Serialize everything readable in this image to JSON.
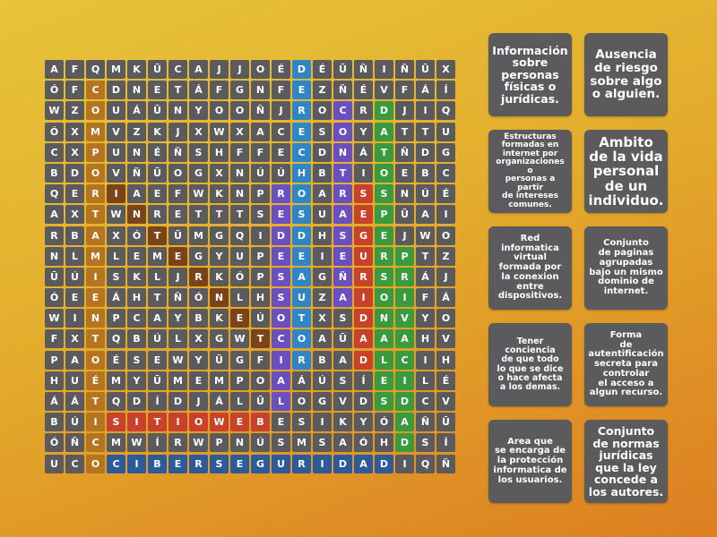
{
  "colors": {
    "cell": "#5b5a5c",
    "comportamiento_etico": "#b5741f",
    "internet": "#7a4319",
    "derechos_de_autor": "#2f86c6",
    "redes_sociales": "#6a4fc0",
    "contrasena": "#6a4fc0",
    "seguridad": "#c8412a",
    "sitio_web": "#c8412a",
    "datos_personales": "#3a9a3e",
    "privacidad": "#3a9a3e",
    "ciberseguridad": "#2d5a99"
  },
  "grid": [
    [
      "A",
      "F",
      "Q",
      "M",
      "K",
      "Ū",
      "C",
      "A",
      "J",
      "J",
      "O",
      "É",
      "D",
      "É",
      "Ū",
      "Ñ",
      "I",
      "Ñ",
      "Ū",
      "X"
    ],
    [
      "Ó",
      "F",
      "C",
      "D",
      "N",
      "E",
      "T",
      "Á",
      "F",
      "G",
      "N",
      "F",
      "E",
      "Z",
      "Ñ",
      "É",
      "V",
      "F",
      "Á",
      "Í"
    ],
    [
      "W",
      "Z",
      "O",
      "U",
      "Á",
      "Ū",
      "N",
      "Y",
      "O",
      "O",
      "Ñ",
      "J",
      "R",
      "O",
      "C",
      "R",
      "D",
      "J",
      "I",
      "Q"
    ],
    [
      "Ó",
      "X",
      "M",
      "V",
      "Z",
      "K",
      "J",
      "X",
      "W",
      "X",
      "A",
      "C",
      "E",
      "S",
      "O",
      "Y",
      "A",
      "T",
      "T",
      "U"
    ],
    [
      "C",
      "X",
      "P",
      "U",
      "N",
      "É",
      "Ñ",
      "S",
      "H",
      "F",
      "F",
      "E",
      "C",
      "D",
      "N",
      "Á",
      "T",
      "Ñ",
      "D",
      "G"
    ],
    [
      "B",
      "D",
      "O",
      "V",
      "Ñ",
      "Ū",
      "O",
      "G",
      "X",
      "N",
      "Ú",
      "Ú",
      "H",
      "B",
      "T",
      "I",
      "O",
      "E",
      "B",
      "C"
    ],
    [
      "Q",
      "E",
      "R",
      "I",
      "A",
      "E",
      "F",
      "W",
      "K",
      "N",
      "P",
      "R",
      "O",
      "A",
      "R",
      "S",
      "S",
      "N",
      "Ú",
      "É"
    ],
    [
      "A",
      "X",
      "T",
      "W",
      "N",
      "R",
      "E",
      "T",
      "T",
      "T",
      "S",
      "E",
      "S",
      "U",
      "A",
      "E",
      "P",
      "Ū",
      "A",
      "I"
    ],
    [
      "R",
      "B",
      "A",
      "X",
      "Ó",
      "T",
      "Ū",
      "M",
      "G",
      "Q",
      "I",
      "D",
      "D",
      "H",
      "S",
      "G",
      "E",
      "J",
      "W",
      "O"
    ],
    [
      "N",
      "L",
      "M",
      "L",
      "E",
      "M",
      "E",
      "G",
      "Y",
      "U",
      "P",
      "E",
      "E",
      "I",
      "E",
      "U",
      "R",
      "P",
      "T",
      "Z"
    ],
    [
      "Ū",
      "Ú",
      "I",
      "S",
      "K",
      "L",
      "J",
      "R",
      "K",
      "Ó",
      "P",
      "S",
      "A",
      "G",
      "Ñ",
      "R",
      "S",
      "R",
      "Á",
      "J"
    ],
    [
      "Ó",
      "E",
      "E",
      "Á",
      "H",
      "T",
      "Ñ",
      "Ó",
      "N",
      "L",
      "H",
      "S",
      "U",
      "Z",
      "A",
      "I",
      "O",
      "I",
      "F",
      "Á"
    ],
    [
      "W",
      "I",
      "N",
      "P",
      "C",
      "A",
      "Y",
      "B",
      "K",
      "E",
      "Ú",
      "O",
      "T",
      "X",
      "S",
      "D",
      "N",
      "V",
      "Y",
      "O"
    ],
    [
      "F",
      "X",
      "T",
      "Q",
      "B",
      "Ú",
      "L",
      "X",
      "G",
      "W",
      "T",
      "C",
      "O",
      "A",
      "Ū",
      "A",
      "A",
      "A",
      "H",
      "V"
    ],
    [
      "P",
      "A",
      "O",
      "É",
      "S",
      "E",
      "W",
      "Y",
      "Ū",
      "G",
      "F",
      "I",
      "R",
      "B",
      "A",
      "D",
      "L",
      "C",
      "I",
      "H"
    ],
    [
      "H",
      "U",
      "É",
      "M",
      "Y",
      "Ū",
      "M",
      "E",
      "M",
      "P",
      "O",
      "A",
      "Á",
      "Ú",
      "S",
      "Í",
      "E",
      "I",
      "L",
      "É"
    ],
    [
      "Á",
      "Á",
      "T",
      "Q",
      "D",
      "Í",
      "D",
      "J",
      "Á",
      "L",
      "Ū",
      "L",
      "O",
      "G",
      "V",
      "D",
      "S",
      "D",
      "C",
      "V"
    ],
    [
      "B",
      "Ú",
      "I",
      "S",
      "I",
      "T",
      "I",
      "O",
      "W",
      "E",
      "B",
      "E",
      "S",
      "I",
      "K",
      "Y",
      "Ó",
      "A",
      "Ñ",
      "Ū"
    ],
    [
      "Ó",
      "Ñ",
      "C",
      "M",
      "W",
      "Í",
      "R",
      "W",
      "P",
      "N",
      "Ú",
      "S",
      "M",
      "S",
      "A",
      "Ó",
      "H",
      "D",
      "S",
      "Í"
    ],
    [
      "U",
      "C",
      "O",
      "C",
      "I",
      "B",
      "E",
      "R",
      "S",
      "E",
      "G",
      "U",
      "R",
      "I",
      "D",
      "A",
      "D",
      "I",
      "Q",
      "Ñ"
    ]
  ],
  "found_words": [
    {
      "word": "COMPORTAMIENTOETICO",
      "color_key": "comportamiento_etico",
      "cells": [
        [
          1,
          2
        ],
        [
          2,
          2
        ],
        [
          3,
          2
        ],
        [
          4,
          2
        ],
        [
          5,
          2
        ],
        [
          6,
          2
        ],
        [
          7,
          2
        ],
        [
          8,
          2
        ],
        [
          9,
          2
        ],
        [
          10,
          2
        ],
        [
          11,
          2
        ],
        [
          12,
          2
        ],
        [
          13,
          2
        ],
        [
          14,
          2
        ],
        [
          15,
          2
        ],
        [
          16,
          2
        ],
        [
          17,
          2
        ],
        [
          18,
          2
        ],
        [
          19,
          2
        ]
      ]
    },
    {
      "word": "INTERNET",
      "color_key": "internet",
      "cells": [
        [
          6,
          3
        ],
        [
          7,
          4
        ],
        [
          8,
          5
        ],
        [
          9,
          6
        ],
        [
          10,
          7
        ],
        [
          11,
          8
        ],
        [
          12,
          9
        ],
        [
          13,
          10
        ]
      ]
    },
    {
      "word": "DERECHOSDEAUTOR",
      "color_key": "derechos_de_autor",
      "cells": [
        [
          0,
          12
        ],
        [
          1,
          12
        ],
        [
          2,
          12
        ],
        [
          3,
          12
        ],
        [
          4,
          12
        ],
        [
          5,
          12
        ],
        [
          6,
          12
        ],
        [
          7,
          12
        ],
        [
          8,
          12
        ],
        [
          9,
          12
        ],
        [
          10,
          12
        ],
        [
          11,
          12
        ],
        [
          12,
          12
        ],
        [
          13,
          12
        ],
        [
          14,
          12
        ]
      ]
    },
    {
      "word": "REDESSOCIAL",
      "color_key": "redes_sociales",
      "cells": [
        [
          6,
          11
        ],
        [
          7,
          11
        ],
        [
          8,
          11
        ],
        [
          9,
          11
        ],
        [
          10,
          11
        ],
        [
          11,
          11
        ],
        [
          12,
          11
        ],
        [
          13,
          11
        ],
        [
          14,
          11
        ],
        [
          15,
          11
        ],
        [
          16,
          11
        ]
      ]
    },
    {
      "word": "CONTRASEÑA",
      "color_key": "contrasena",
      "cells": [
        [
          2,
          14
        ],
        [
          3,
          14
        ],
        [
          4,
          14
        ],
        [
          5,
          14
        ],
        [
          6,
          14
        ],
        [
          7,
          14
        ],
        [
          8,
          14
        ],
        [
          9,
          14
        ],
        [
          10,
          14
        ],
        [
          11,
          14
        ]
      ]
    },
    {
      "word": "SEGURIDAD",
      "color_key": "seguridad",
      "cells": [
        [
          6,
          15
        ],
        [
          7,
          15
        ],
        [
          8,
          15
        ],
        [
          9,
          15
        ],
        [
          10,
          15
        ],
        [
          11,
          15
        ],
        [
          12,
          15
        ],
        [
          13,
          15
        ],
        [
          14,
          15
        ]
      ]
    },
    {
      "word": "SITIOWEB",
      "color_key": "sitio_web",
      "cells": [
        [
          17,
          3
        ],
        [
          17,
          4
        ],
        [
          17,
          5
        ],
        [
          17,
          6
        ],
        [
          17,
          7
        ],
        [
          17,
          8
        ],
        [
          17,
          9
        ],
        [
          17,
          10
        ]
      ]
    },
    {
      "word": "DATOSPERSONALES",
      "color_key": "datos_personales",
      "cells": [
        [
          2,
          16
        ],
        [
          3,
          16
        ],
        [
          4,
          16
        ],
        [
          5,
          16
        ],
        [
          6,
          16
        ],
        [
          7,
          16
        ],
        [
          8,
          16
        ],
        [
          9,
          16
        ],
        [
          10,
          16
        ],
        [
          11,
          16
        ],
        [
          12,
          16
        ],
        [
          13,
          16
        ],
        [
          14,
          16
        ],
        [
          15,
          16
        ],
        [
          16,
          16
        ]
      ]
    },
    {
      "word": "PRIVACIDAD",
      "color_key": "privacidad",
      "cells": [
        [
          9,
          17
        ],
        [
          10,
          17
        ],
        [
          11,
          17
        ],
        [
          12,
          17
        ],
        [
          13,
          17
        ],
        [
          14,
          17
        ],
        [
          15,
          17
        ],
        [
          16,
          17
        ],
        [
          17,
          17
        ],
        [
          18,
          17
        ]
      ]
    },
    {
      "word": "CIBERSEGURIDAD",
      "color_key": "ciberseguridad",
      "cells": [
        [
          19,
          3
        ],
        [
          19,
          4
        ],
        [
          19,
          5
        ],
        [
          19,
          6
        ],
        [
          19,
          7
        ],
        [
          19,
          8
        ],
        [
          19,
          9
        ],
        [
          19,
          10
        ],
        [
          19,
          11
        ],
        [
          19,
          12
        ],
        [
          19,
          13
        ],
        [
          19,
          14
        ],
        [
          19,
          15
        ],
        [
          19,
          16
        ]
      ]
    }
  ],
  "clues": [
    {
      "lines": [
        "Información",
        "sobre",
        "personas",
        "físicas o",
        "jurídicas."
      ]
    },
    {
      "lines": [
        "Ausencia",
        "de riesgo",
        "sobre algo",
        "o alguien."
      ]
    },
    {
      "lines": [
        "Estructuras",
        "formadas en",
        "internet por",
        "organizaciones o",
        "personas a partir",
        "de intereses",
        "comunes."
      ]
    },
    {
      "lines": [
        "Ambito",
        "de la vida",
        "personal",
        "de un",
        "individuo."
      ]
    },
    {
      "lines": [
        "Red",
        "informatica",
        "virtual",
        "formada por",
        "la conexion",
        "entre",
        "dispositivos."
      ]
    },
    {
      "lines": [
        "Conjunto",
        "de paginas",
        "agrupadas",
        "bajo un mismo",
        "dominio de",
        "internet."
      ]
    },
    {
      "lines": [
        "Tener conciencia",
        "de que todo",
        "lo que se dice",
        "o hace afecta",
        "a los demas."
      ]
    },
    {
      "lines": [
        "Forma",
        "de",
        "autentificación",
        "secreta para",
        "controlar",
        "el acceso a",
        "algun recurso."
      ]
    },
    {
      "lines": [
        "Area que",
        "se encarga de",
        "la protección",
        "informatica de",
        "los usuarios."
      ]
    },
    {
      "lines": [
        "Conjunto",
        "de normas",
        "jurídicas",
        "que la ley",
        "concede a",
        "los autores."
      ]
    }
  ]
}
